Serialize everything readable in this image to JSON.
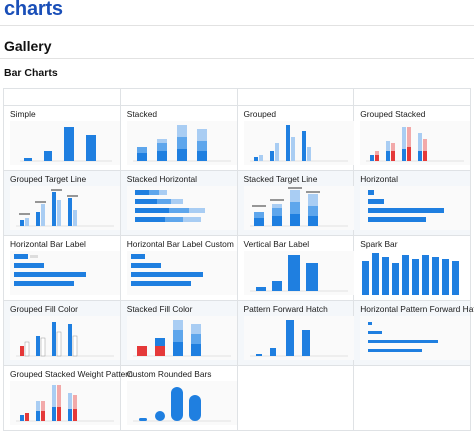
{
  "site": {
    "title": "charts"
  },
  "page": {
    "title": "Gallery",
    "section": "Bar Charts"
  },
  "colors": {
    "accent": "#1a4fb8",
    "bar": "#1f7fe0",
    "bar_light": "#a9cdf3",
    "bar_mid": "#5ea6ec",
    "red": "#e53939",
    "red_light": "#f2a9a9"
  },
  "gallery": {
    "items": [
      {
        "label": "Simple",
        "icon": "thumb-simple"
      },
      {
        "label": "Stacked",
        "icon": "thumb-stacked"
      },
      {
        "label": "Grouped",
        "icon": "thumb-grouped"
      },
      {
        "label": "Grouped Stacked",
        "icon": "thumb-grouped-stacked"
      },
      {
        "label": "Grouped Target Line",
        "icon": "thumb-grouped-target-line"
      },
      {
        "label": "Stacked Horizontal",
        "icon": "thumb-stacked-horizontal"
      },
      {
        "label": "Stacked Target Line",
        "icon": "thumb-stacked-target-line"
      },
      {
        "label": "Horizontal",
        "icon": "thumb-horizontal"
      },
      {
        "label": "Horizontal Bar Label",
        "icon": "thumb-horizontal-bar-label"
      },
      {
        "label": "Horizontal Bar Label Custom",
        "icon": "thumb-horizontal-bar-label-custom"
      },
      {
        "label": "Vertical Bar Label",
        "icon": "thumb-vertical-bar-label"
      },
      {
        "label": "Spark Bar",
        "icon": "thumb-spark-bar"
      },
      {
        "label": "Grouped Fill Color",
        "icon": "thumb-grouped-fill-color"
      },
      {
        "label": "Stacked Fill Color",
        "icon": "thumb-stacked-fill-color"
      },
      {
        "label": "Pattern Forward Hatch",
        "icon": "thumb-pattern-forward-hatch"
      },
      {
        "label": "Horizontal Pattern Forward Hatch",
        "icon": "thumb-horizontal-pattern-forward-hatch"
      },
      {
        "label": "Grouped Stacked Weight Pattern",
        "icon": "thumb-grouped-stacked-weight-pattern"
      },
      {
        "label": "Custom Rounded Bars",
        "icon": "thumb-custom-rounded-bars"
      }
    ]
  }
}
